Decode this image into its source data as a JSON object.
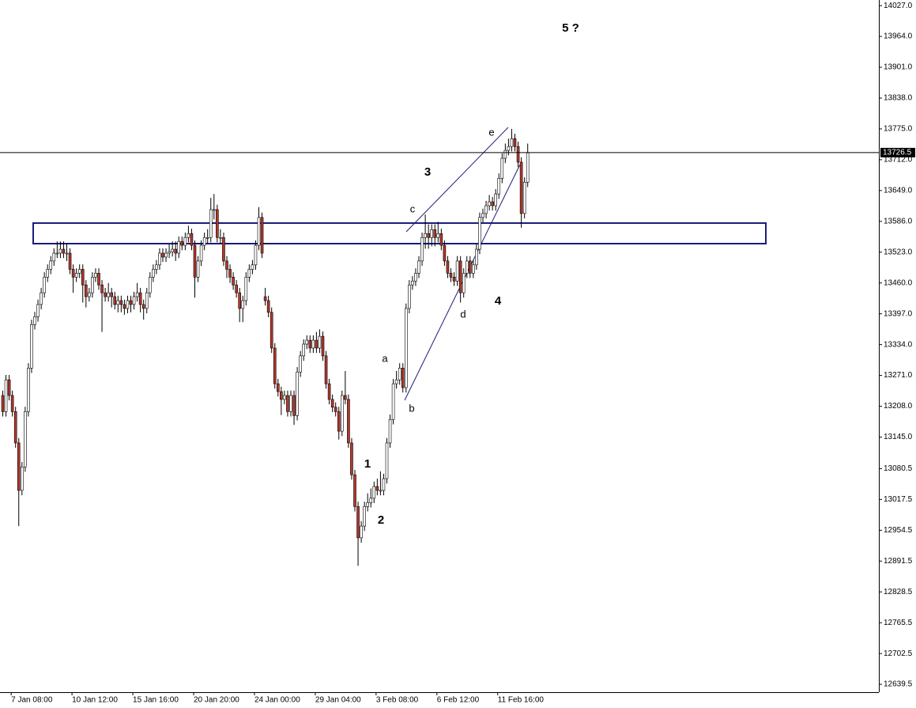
{
  "chart_data": {
    "type": "candlestick",
    "categories": [
      null,
      null,
      null,
      "7 Jan 08:00",
      null,
      null,
      null,
      null,
      null,
      null,
      null,
      null,
      null,
      null,
      null,
      null,
      null,
      null,
      null,
      null,
      null,
      null,
      "10 Jan 12:00",
      null,
      null,
      null,
      null,
      null,
      null,
      null,
      null,
      null,
      null,
      null,
      null,
      null,
      null,
      null,
      null,
      null,
      null,
      "15 Jan 16:00",
      null,
      null,
      null,
      null,
      null,
      null,
      null,
      null,
      null,
      null,
      null,
      null,
      null,
      null,
      null,
      null,
      null,
      null,
      "20 Jan 20:00",
      null,
      null,
      null,
      null,
      null,
      null,
      null,
      null,
      null,
      null,
      null,
      null,
      null,
      null,
      null,
      null,
      null,
      null,
      "24 Jan 00:00",
      null,
      null,
      null,
      null,
      null,
      null,
      null,
      null,
      null,
      null,
      null,
      null,
      null,
      null,
      null,
      null,
      null,
      null,
      "29 Jan 04:00",
      null,
      null,
      null,
      null,
      null,
      null,
      null,
      null,
      null,
      null,
      null,
      null,
      null,
      null,
      null,
      null,
      null,
      null,
      "3 Feb 08:00",
      null,
      null,
      null,
      null,
      null,
      null,
      null,
      null,
      null,
      null,
      null,
      null,
      null,
      null,
      null,
      null,
      null,
      null,
      "6 Feb 12:00",
      null,
      null,
      null,
      null,
      null,
      null,
      null,
      null,
      null,
      null,
      null,
      null,
      null,
      null,
      null,
      null,
      null,
      null,
      "11 Feb 16:00",
      null,
      null,
      null,
      null,
      null,
      null,
      null,
      null,
      null
    ],
    "open": [
      13230,
      13197,
      13262,
      13230,
      13197,
      13133,
      13036,
      13084,
      13197,
      13286,
      13375,
      13391,
      13416,
      13440,
      13472,
      13488,
      13505,
      13521,
      13521,
      13529,
      13521,
      13521,
      13488,
      13472,
      13480,
      13488,
      13456,
      13432,
      13440,
      13472,
      13480,
      13456,
      13440,
      13432,
      13440,
      13432,
      13416,
      13424,
      13416,
      13408,
      13424,
      13416,
      13432,
      13440,
      13416,
      13408,
      13440,
      13472,
      13488,
      13497,
      13521,
      13513,
      13521,
      13524,
      13529,
      13521,
      13545,
      13537,
      13553,
      13561,
      13537,
      13472,
      13505,
      13537,
      13553,
      13553,
      13610,
      13610,
      13553,
      13553,
      13505,
      13488,
      13472,
      13456,
      13440,
      13408,
      13424,
      13472,
      13488,
      13497,
      13537,
      13594,
      13432,
      13424,
      13400,
      13327,
      13254,
      13238,
      13222,
      13230,
      13197,
      13230,
      13189,
      13278,
      13311,
      13335,
      13343,
      13327,
      13343,
      13327,
      13351,
      13311,
      13254,
      13222,
      13206,
      13197,
      13157,
      13230,
      13222,
      13133,
      13068,
      13003,
      12939,
      12963,
      13003,
      13011,
      13020,
      13044,
      13036,
      13036,
      13060,
      13133,
      13181,
      13254,
      13262,
      13286,
      13246,
      13408,
      13456,
      13464,
      13480,
      13505,
      13553,
      13561,
      13553,
      13569,
      13553,
      13561,
      13537,
      13505,
      13480,
      13472,
      13464,
      13505,
      13440,
      13480,
      13505,
      13480,
      13497,
      13529,
      13594,
      13602,
      13618,
      13626,
      13618,
      13642,
      13674,
      13715,
      13731,
      13739,
      13755,
      13739,
      13707,
      13602,
      13666
    ],
    "high": [
      13240,
      13272,
      13272,
      13240,
      13207,
      13143,
      13094,
      13207,
      13296,
      13385,
      13401,
      13426,
      13450,
      13482,
      13498,
      13515,
      13531,
      13545,
      13545,
      13545,
      13540,
      13531,
      13498,
      13490,
      13498,
      13498,
      13466,
      13450,
      13482,
      13490,
      13490,
      13466,
      13450,
      13460,
      13450,
      13442,
      13434,
      13434,
      13426,
      13434,
      13434,
      13442,
      13460,
      13450,
      13426,
      13450,
      13482,
      13498,
      13507,
      13531,
      13531,
      13531,
      13540,
      13545,
      13545,
      13555,
      13555,
      13563,
      13577,
      13571,
      13547,
      13515,
      13547,
      13563,
      13570,
      13634,
      13642,
      13620,
      13570,
      13563,
      13515,
      13498,
      13482,
      13466,
      13450,
      13434,
      13482,
      13498,
      13507,
      13547,
      13615,
      13604,
      13450,
      13434,
      13410,
      13337,
      13264,
      13248,
      13240,
      13240,
      13240,
      13240,
      13288,
      13321,
      13345,
      13353,
      13353,
      13353,
      13360,
      13365,
      13361,
      13321,
      13264,
      13232,
      13216,
      13207,
      13240,
      13280,
      13232,
      13143,
      13078,
      13013,
      12973,
      13013,
      13030,
      13040,
      13054,
      13060,
      13075,
      13070,
      13143,
      13191,
      13264,
      13280,
      13296,
      13296,
      13418,
      13466,
      13474,
      13490,
      13515,
      13563,
      13600,
      13580,
      13580,
      13580,
      13585,
      13571,
      13547,
      13515,
      13490,
      13482,
      13515,
      13515,
      13490,
      13515,
      13515,
      13507,
      13539,
      13604,
      13612,
      13628,
      13640,
      13636,
      13652,
      13684,
      13725,
      13745,
      13755,
      13775,
      13765,
      13749,
      13717,
      13676,
      13745
    ],
    "low": [
      13187,
      13187,
      13220,
      13187,
      13123,
      12963,
      13026,
      13074,
      13187,
      13276,
      13365,
      13381,
      13406,
      13430,
      13462,
      13478,
      13495,
      13511,
      13511,
      13511,
      13505,
      13478,
      13440,
      13462,
      13470,
      13420,
      13410,
      13422,
      13430,
      13462,
      13446,
      13360,
      13422,
      13422,
      13410,
      13406,
      13400,
      13400,
      13395,
      13398,
      13400,
      13406,
      13422,
      13400,
      13385,
      13398,
      13430,
      13462,
      13478,
      13487,
      13503,
      13503,
      13511,
      13514,
      13505,
      13511,
      13527,
      13527,
      13543,
      13527,
      13430,
      13462,
      13495,
      13527,
      13540,
      13543,
      13590,
      13543,
      13540,
      13495,
      13470,
      13460,
      13446,
      13430,
      13380,
      13380,
      13414,
      13462,
      13478,
      13487,
      13527,
      13511,
      13414,
      13390,
      13317,
      13244,
      13228,
      13190,
      13212,
      13187,
      13187,
      13170,
      13179,
      13268,
      13301,
      13325,
      13317,
      13317,
      13317,
      13317,
      13301,
      13244,
      13212,
      13196,
      13187,
      13140,
      13147,
      13212,
      13123,
      13058,
      12993,
      12882,
      12929,
      12953,
      12993,
      13001,
      13010,
      13026,
      13026,
      13026,
      13050,
      13123,
      13171,
      13244,
      13252,
      13236,
      13236,
      13398,
      13446,
      13454,
      13470,
      13495,
      13530,
      13530,
      13535,
      13535,
      13543,
      13527,
      13495,
      13470,
      13462,
      13454,
      13454,
      13420,
      13430,
      13470,
      13470,
      13470,
      13487,
      13519,
      13584,
      13592,
      13608,
      13608,
      13608,
      13632,
      13664,
      13705,
      13721,
      13729,
      13729,
      13697,
      13573,
      13592,
      13656
    ],
    "close": [
      13197,
      13262,
      13230,
      13197,
      13133,
      13036,
      13084,
      13197,
      13286,
      13375,
      13391,
      13416,
      13440,
      13472,
      13488,
      13505,
      13521,
      13521,
      13529,
      13521,
      13521,
      13488,
      13472,
      13480,
      13488,
      13456,
      13432,
      13440,
      13472,
      13480,
      13456,
      13440,
      13432,
      13440,
      13432,
      13416,
      13424,
      13416,
      13408,
      13424,
      13416,
      13432,
      13440,
      13416,
      13408,
      13440,
      13472,
      13488,
      13497,
      13521,
      13513,
      13521,
      13524,
      13529,
      13521,
      13545,
      13537,
      13553,
      13561,
      13537,
      13472,
      13505,
      13537,
      13553,
      13553,
      13610,
      13610,
      13553,
      13553,
      13505,
      13488,
      13472,
      13456,
      13440,
      13408,
      13424,
      13472,
      13488,
      13497,
      13537,
      13594,
      13521,
      13424,
      13400,
      13327,
      13254,
      13238,
      13222,
      13230,
      13197,
      13230,
      13189,
      13278,
      13311,
      13335,
      13343,
      13327,
      13343,
      13327,
      13351,
      13311,
      13254,
      13222,
      13206,
      13197,
      13157,
      13230,
      13222,
      13133,
      13068,
      13003,
      12939,
      12963,
      13003,
      13011,
      13020,
      13044,
      13036,
      13036,
      13060,
      13133,
      13181,
      13254,
      13262,
      13286,
      13246,
      13408,
      13456,
      13464,
      13480,
      13505,
      13553,
      13561,
      13553,
      13569,
      13553,
      13561,
      13537,
      13505,
      13480,
      13472,
      13464,
      13505,
      13440,
      13480,
      13505,
      13480,
      13497,
      13529,
      13594,
      13602,
      13618,
      13626,
      13618,
      13642,
      13674,
      13715,
      13731,
      13739,
      13755,
      13739,
      13707,
      13602,
      13666,
      13726
    ],
    "up_color": "#ffffff",
    "down_color": "#b5372a",
    "wick_color": "#000000",
    "ylim": [
      12623.5,
      14038.5
    ],
    "yticks": [
      {
        "value": 14027,
        "label": "14027.0"
      },
      {
        "value": 13964,
        "label": "13964.0"
      },
      {
        "value": 13901,
        "label": "13901.0"
      },
      {
        "value": 13838,
        "label": "13838.0"
      },
      {
        "value": 13775,
        "label": "13775.0"
      },
      {
        "value": 13712,
        "label": "13712.0"
      },
      {
        "value": 13649,
        "label": "13649.0"
      },
      {
        "value": 13586,
        "label": "13586.0"
      },
      {
        "value": 13523,
        "label": "13523.0"
      },
      {
        "value": 13460,
        "label": "13460.0"
      },
      {
        "value": 13397,
        "label": "13397.0"
      },
      {
        "value": 13334,
        "label": "13334.0"
      },
      {
        "value": 13271,
        "label": "13271.0"
      },
      {
        "value": 13208,
        "label": "13208.0"
      },
      {
        "value": 13145,
        "label": "13145.0"
      },
      13080.5,
      13017.5,
      12954.5,
      12891.5,
      12828.5,
      12765.5,
      12702.5,
      12639.5
    ],
    "last_price": 13726.5,
    "annotations": [
      "5 ?",
      "3",
      "4",
      "1",
      "2",
      "a",
      "b",
      "c",
      "d",
      "e"
    ],
    "drawing_color": "#1c1c78"
  }
}
